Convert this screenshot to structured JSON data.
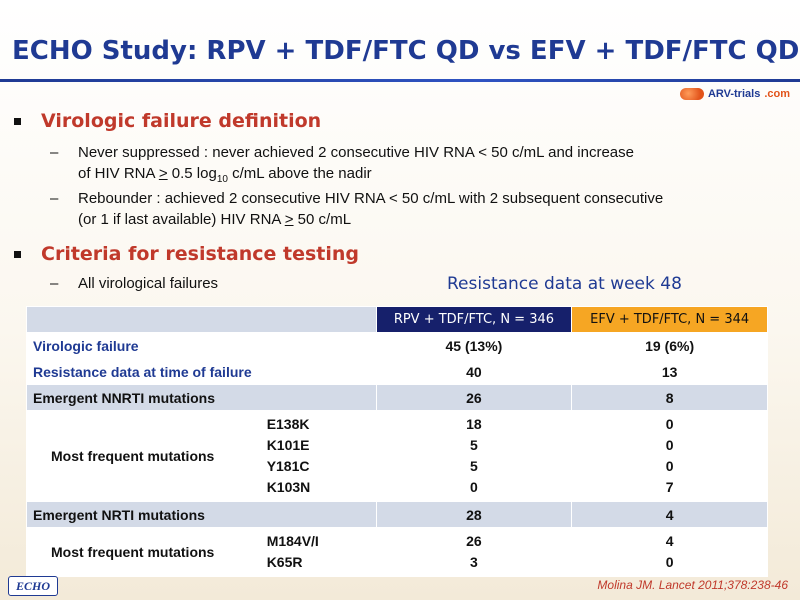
{
  "title": "ECHO Study: RPV + TDF/FTC QD vs EFV + TDF/FTC QD",
  "logo": {
    "text": "ARV-trials",
    "domain": ".com"
  },
  "section1": {
    "heading": "Virologic failure definition",
    "items": [
      {
        "line1": "Never suppressed : never achieved 2 consecutive HIV RNA < 50 c/mL and increase",
        "line2_pre": "of HIV RNA ",
        "line2_ge": ">",
        "line2_mid": " 0.5 log",
        "line2_sub": "10",
        "line2_post": " c/mL above the nadir"
      },
      {
        "line1": "Rebounder : achieved 2 consecutive HIV RNA < 50 c/mL with 2 subsequent consecutive",
        "line2_pre": "(or 1 if last available) HIV RNA ",
        "line2_ge": ">",
        "line2_post": " 50 c/mL"
      }
    ]
  },
  "section2": {
    "heading": "Criteria for resistance testing",
    "items": [
      "All virological failures"
    ]
  },
  "table": {
    "title": "Resistance data at week 48",
    "headers": [
      "RPV + TDF/FTC, N = 346",
      "EFV + TDF/FTC, N = 344"
    ],
    "rows": {
      "vf": {
        "label": "Virologic failure",
        "rpv": "45 (13%)",
        "efv": "19 (6%)"
      },
      "rd": {
        "label": "Resistance data at time of failure",
        "rpv": "40",
        "efv": "13"
      },
      "nnrti": {
        "label": "Emergent NNRTI mutations",
        "rpv": "26",
        "efv": "8"
      },
      "nnrti_mf": {
        "label": "Most frequent mutations",
        "mutations": [
          "E138K",
          "K101E",
          "Y181C",
          "K103N"
        ],
        "rpv": [
          "18",
          "5",
          "5",
          "0"
        ],
        "efv": [
          "0",
          "0",
          "0",
          "7"
        ]
      },
      "nrti": {
        "label": "Emergent NRTI mutations",
        "rpv": "28",
        "efv": "4"
      },
      "nrti_mf": {
        "label": "Most frequent mutations",
        "mutations": [
          "M184V/I",
          "K65R"
        ],
        "rpv": [
          "26",
          "3"
        ],
        "efv": [
          "4",
          "0"
        ]
      }
    }
  },
  "footer": {
    "badge": "ECHO",
    "citation": "Molina JM. Lancet 2011;378:238-46"
  },
  "colors": {
    "title": "#1f3a93",
    "heading": "#c0392b",
    "rpv_header": "#16206b",
    "efv_header": "#f6a623"
  }
}
